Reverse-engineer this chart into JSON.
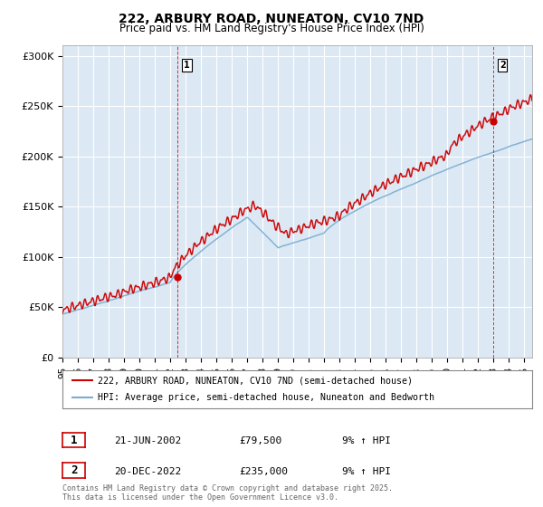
{
  "title": "222, ARBURY ROAD, NUNEATON, CV10 7ND",
  "subtitle": "Price paid vs. HM Land Registry's House Price Index (HPI)",
  "ylabel_ticks": [
    "£0",
    "£50K",
    "£100K",
    "£150K",
    "£200K",
    "£250K",
    "£300K"
  ],
  "ytick_values": [
    0,
    50000,
    100000,
    150000,
    200000,
    250000,
    300000
  ],
  "ylim": [
    0,
    310000
  ],
  "xlim_start": 1995.0,
  "xlim_end": 2025.5,
  "red_color": "#cc0000",
  "blue_color": "#7aadcf",
  "plot_bg_color": "#dce9f5",
  "marker1_x": 2002.47,
  "marker1_y": 79500,
  "marker2_x": 2022.97,
  "marker2_y": 235000,
  "legend_line1": "222, ARBURY ROAD, NUNEATON, CV10 7ND (semi-detached house)",
  "legend_line2": "HPI: Average price, semi-detached house, Nuneaton and Bedworth",
  "annotation1_label": "1",
  "annotation1_date": "21-JUN-2002",
  "annotation1_price": "£79,500",
  "annotation1_hpi": "9% ↑ HPI",
  "annotation2_label": "2",
  "annotation2_date": "20-DEC-2022",
  "annotation2_price": "£235,000",
  "annotation2_hpi": "9% ↑ HPI",
  "footer": "Contains HM Land Registry data © Crown copyright and database right 2025.\nThis data is licensed under the Open Government Licence v3.0.",
  "background_color": "#ffffff"
}
